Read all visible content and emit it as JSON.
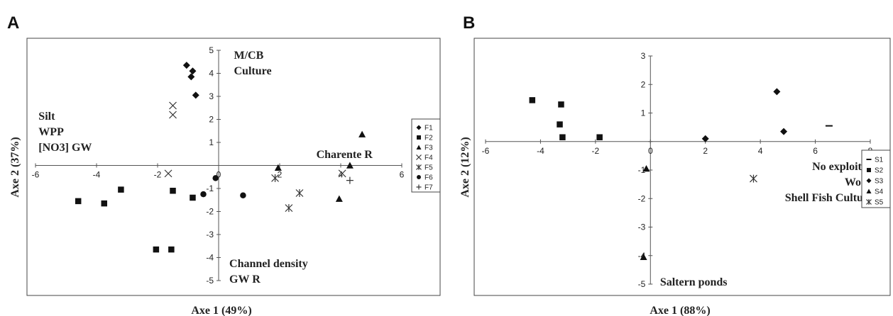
{
  "chart_data": [
    {
      "panel": "A",
      "type": "scatter",
      "xlabel": "Axe 1 (49%)",
      "ylabel": "Axe 2 (37%)",
      "xlim": [
        -6,
        6
      ],
      "ylim": [
        -5,
        5
      ],
      "x_ticks": [
        -6,
        -4,
        -2,
        0,
        2,
        4,
        6
      ],
      "y_ticks": [
        -5,
        -4,
        -3,
        -2,
        -1,
        0,
        1,
        2,
        3,
        4,
        5
      ],
      "legend_position": "right",
      "annotations": [
        {
          "lines": [
            "M/CB",
            "Culture"
          ],
          "x": 0.5,
          "y": 5,
          "anchor": "start"
        },
        {
          "lines": [
            "Silt",
            "WPP",
            "[NO3] GW"
          ],
          "x": -5.9,
          "y": 2.35,
          "anchor": "start"
        },
        {
          "lines": [
            "Charente R"
          ],
          "x": 3.2,
          "y": 0.7,
          "anchor": "start"
        },
        {
          "lines": [
            "Channel density",
            "GW R"
          ],
          "x": 0.35,
          "y": -4.05,
          "anchor": "start"
        }
      ],
      "series": [
        {
          "name": "F1",
          "marker": "diamond",
          "points": [
            [
              -1.05,
              4.35
            ],
            [
              -0.85,
              4.1
            ],
            [
              -0.9,
              3.85
            ],
            [
              -0.75,
              3.05
            ]
          ]
        },
        {
          "name": "F2",
          "marker": "square",
          "points": [
            [
              -4.6,
              -1.55
            ],
            [
              -3.75,
              -1.65
            ],
            [
              -3.2,
              -1.05
            ],
            [
              -1.5,
              -1.1
            ],
            [
              -0.85,
              -1.4
            ],
            [
              -2.05,
              -3.65
            ],
            [
              -1.55,
              -3.65
            ]
          ]
        },
        {
          "name": "F3",
          "marker": "triangle",
          "points": [
            [
              4.7,
              1.35
            ],
            [
              4.3,
              0
            ],
            [
              1.95,
              -0.1
            ],
            [
              3.95,
              -1.45
            ]
          ]
        },
        {
          "name": "F4",
          "marker": "x",
          "points": [
            [
              -1.5,
              2.6
            ],
            [
              -1.5,
              2.2
            ],
            [
              -1.65,
              -0.35
            ],
            [
              4.05,
              -0.35
            ]
          ]
        },
        {
          "name": "F5",
          "marker": "asterisk",
          "points": [
            [
              1.85,
              -0.55
            ],
            [
              2.65,
              -1.2
            ],
            [
              2.3,
              -1.85
            ]
          ]
        },
        {
          "name": "F6",
          "marker": "circle",
          "points": [
            [
              -0.1,
              -0.55
            ],
            [
              -0.5,
              -1.25
            ],
            [
              0.8,
              -1.3
            ]
          ]
        },
        {
          "name": "F7",
          "marker": "plus",
          "points": [
            [
              4.3,
              -0.65
            ]
          ]
        }
      ]
    },
    {
      "panel": "B",
      "type": "scatter",
      "xlabel": "Axe 1 (88%)",
      "ylabel": "Axe 2 (12%)",
      "xlim": [
        -6,
        8
      ],
      "ylim": [
        -5,
        3
      ],
      "x_ticks": [
        -6,
        -4,
        -2,
        0,
        2,
        4,
        6,
        8
      ],
      "y_ticks": [
        -5,
        -4,
        -3,
        -2,
        -1,
        0,
        1,
        2,
        3
      ],
      "legend_position": "right",
      "annotations": [
        {
          "lines": [
            "No exploited",
            "Wood",
            "Shell Fish Culture"
          ],
          "x": 8.1,
          "y": -0.7,
          "anchor": "end"
        },
        {
          "lines": [
            "Saltern ponds"
          ],
          "x": 0.35,
          "y": -4.75,
          "anchor": "start"
        }
      ],
      "series": [
        {
          "name": "S1",
          "marker": "dash",
          "points": [
            [
              6.5,
              0.55
            ]
          ]
        },
        {
          "name": "S2",
          "marker": "square",
          "points": [
            [
              -4.3,
              1.45
            ],
            [
              -3.25,
              1.3
            ],
            [
              -3.3,
              0.6
            ],
            [
              -3.2,
              0.15
            ],
            [
              -1.85,
              0.15
            ]
          ]
        },
        {
          "name": "S3",
          "marker": "diamond",
          "points": [
            [
              4.6,
              1.75
            ],
            [
              4.85,
              0.35
            ],
            [
              2.0,
              0.1
            ]
          ]
        },
        {
          "name": "S4",
          "marker": "triangle",
          "points": [
            [
              -0.15,
              -0.95
            ],
            [
              -0.25,
              -4.05
            ]
          ]
        },
        {
          "name": "S5",
          "marker": "asterisk",
          "points": [
            [
              3.75,
              -1.3
            ]
          ]
        }
      ]
    }
  ]
}
